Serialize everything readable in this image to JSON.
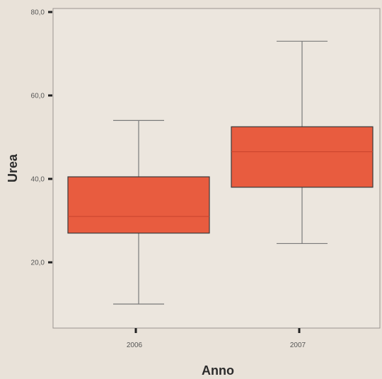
{
  "chart_data": {
    "type": "boxplot",
    "xlabel": "Anno",
    "ylabel": "Urea",
    "ylim": [
      0,
      80
    ],
    "yticks": [
      20,
      40,
      60,
      80
    ],
    "ytick_labels": [
      "20,0",
      "40,0",
      "60,0",
      "80,0"
    ],
    "categories": [
      "2006",
      "2007"
    ],
    "boxes": [
      {
        "category": "2006",
        "whisker_low": 10,
        "q1": 27,
        "median": 31,
        "q3": 40.5,
        "whisker_high": 54
      },
      {
        "category": "2007",
        "whisker_low": 24.5,
        "q1": 38,
        "median": 46.5,
        "q3": 52.5,
        "whisker_high": 73
      }
    ],
    "colors": {
      "box_fill": "#e85c3f",
      "box_stroke": "#3a3a3a",
      "median": "#c8422c",
      "whisker": "#7a7a7a",
      "plot_background": "#ece6de",
      "page_background": "#e9e2d9"
    }
  }
}
